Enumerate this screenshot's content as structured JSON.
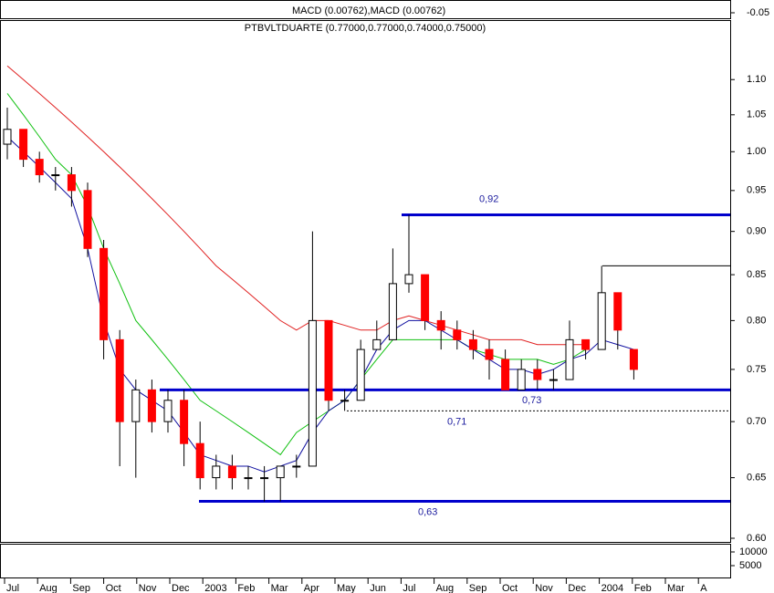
{
  "chart_data": {
    "type": "candlestick",
    "title": "PTBVLTDUARTE (0.77000,0.77000,0.74000,0.75000)",
    "top_panel": {
      "label": "MACD (0.00762),MACD (0.00762)",
      "yticks": [
        -0.05
      ]
    },
    "log_scale": true,
    "ylim": [
      0.6,
      1.19
    ],
    "yticks": [
      {
        "value": 0.6,
        "label": "0.60"
      },
      {
        "value": 0.65,
        "label": "0.65"
      },
      {
        "value": 0.7,
        "label": "0.70"
      },
      {
        "value": 0.75,
        "label": "0.75"
      },
      {
        "value": 0.8,
        "label": "0.80"
      },
      {
        "value": 0.85,
        "label": "0.85"
      },
      {
        "value": 0.9,
        "label": "0.90"
      },
      {
        "value": 0.95,
        "label": "0.95"
      },
      {
        "value": 1.0,
        "label": "1.00"
      },
      {
        "value": 1.05,
        "label": "1.05"
      },
      {
        "value": 1.1,
        "label": "1.10"
      }
    ],
    "xtick_labels": [
      "Jul",
      "Aug",
      "Sep",
      "Oct",
      "Nov",
      "Dec",
      "2003",
      "Feb",
      "Mar",
      "Apr",
      "May",
      "Jun",
      "Jul",
      "Aug",
      "Sep",
      "Oct",
      "Nov",
      "Dec",
      "2004",
      "Feb",
      "Mar",
      "A"
    ],
    "up_color": "#ffffff",
    "down_color": "#ff0000",
    "open": [
      1.01,
      1.03,
      0.99,
      0.97,
      0.97,
      0.95,
      0.88,
      0.78,
      0.7,
      0.73,
      0.7,
      0.72,
      0.68,
      0.65,
      0.66,
      0.65,
      0.65,
      0.65,
      0.66,
      0.66,
      0.8,
      0.72,
      0.72,
      0.77,
      0.78,
      0.84,
      0.85,
      0.8,
      0.79,
      0.78,
      0.77,
      0.76,
      0.73,
      0.75,
      0.74,
      0.74,
      0.78,
      0.77,
      0.83,
      0.77
    ],
    "high": [
      1.06,
      1.03,
      1.0,
      0.98,
      0.98,
      0.96,
      0.89,
      0.79,
      0.74,
      0.74,
      0.73,
      0.73,
      0.7,
      0.67,
      0.67,
      0.66,
      0.66,
      0.66,
      0.67,
      0.9,
      0.8,
      0.73,
      0.78,
      0.8,
      0.88,
      0.92,
      0.85,
      0.81,
      0.8,
      0.79,
      0.78,
      0.77,
      0.76,
      0.76,
      0.75,
      0.8,
      0.78,
      0.86,
      0.83,
      0.77
    ],
    "low": [
      0.99,
      0.98,
      0.96,
      0.95,
      0.93,
      0.87,
      0.76,
      0.66,
      0.65,
      0.69,
      0.69,
      0.66,
      0.64,
      0.64,
      0.64,
      0.64,
      0.63,
      0.63,
      0.65,
      0.66,
      0.71,
      0.71,
      0.72,
      0.77,
      0.78,
      0.83,
      0.79,
      0.77,
      0.77,
      0.76,
      0.74,
      0.73,
      0.73,
      0.73,
      0.73,
      0.74,
      0.76,
      0.77,
      0.77,
      0.74
    ],
    "close": [
      1.03,
      0.99,
      0.97,
      0.97,
      0.95,
      0.88,
      0.78,
      0.7,
      0.73,
      0.7,
      0.72,
      0.68,
      0.65,
      0.66,
      0.65,
      0.65,
      0.65,
      0.66,
      0.66,
      0.8,
      0.72,
      0.72,
      0.77,
      0.78,
      0.84,
      0.85,
      0.8,
      0.79,
      0.78,
      0.77,
      0.76,
      0.73,
      0.75,
      0.74,
      0.74,
      0.78,
      0.77,
      0.83,
      0.79,
      0.75
    ],
    "series": [
      {
        "color": "#e02020",
        "values": [
          1.12,
          1.1,
          1.08,
          1.06,
          1.04,
          1.02,
          1.0,
          0.98,
          0.96,
          0.94,
          0.92,
          0.9,
          0.88,
          0.86,
          0.845,
          0.83,
          0.815,
          0.8,
          0.79,
          0.8,
          0.8,
          0.795,
          0.79,
          0.79,
          0.8,
          0.805,
          0.8,
          0.795,
          0.79,
          0.785,
          0.78,
          0.78,
          0.78,
          0.775,
          0.775,
          0.775,
          0.775,
          null,
          null,
          null
        ]
      },
      {
        "color": "#10c010",
        "values": [
          1.08,
          1.05,
          1.02,
          0.99,
          0.97,
          0.93,
          0.88,
          0.84,
          0.8,
          0.78,
          0.76,
          0.74,
          0.72,
          0.71,
          0.7,
          0.69,
          0.68,
          0.67,
          0.69,
          0.7,
          0.71,
          0.72,
          0.74,
          0.76,
          0.78,
          0.78,
          0.78,
          0.78,
          0.78,
          0.77,
          0.765,
          0.76,
          0.76,
          0.76,
          0.755,
          0.76,
          0.77,
          null,
          null,
          null
        ]
      },
      {
        "color": "#1010a0",
        "values": [
          1.02,
          1.0,
          0.98,
          0.96,
          0.94,
          0.88,
          0.8,
          0.75,
          0.73,
          0.72,
          0.71,
          0.69,
          0.67,
          0.665,
          0.66,
          0.66,
          0.655,
          0.66,
          0.665,
          0.69,
          0.71,
          0.72,
          0.74,
          0.77,
          0.79,
          0.8,
          0.8,
          0.79,
          0.78,
          0.77,
          0.76,
          0.75,
          0.75,
          0.745,
          0.75,
          0.76,
          0.765,
          0.78,
          0.775,
          0.77
        ]
      }
    ],
    "levels": [
      {
        "value": 0.92,
        "label": "0,92",
        "color": "#0000cc"
      },
      {
        "value": 0.73,
        "label": "0,73",
        "color": "#0000cc"
      },
      {
        "value": 0.71,
        "label": "0,71",
        "color": "#000000",
        "dashed": true
      },
      {
        "value": 0.63,
        "label": "0,63",
        "color": "#0000cc"
      },
      {
        "value": 0.86,
        "color": "#000000"
      }
    ],
    "volume_ticks": [
      10000,
      5000
    ]
  }
}
